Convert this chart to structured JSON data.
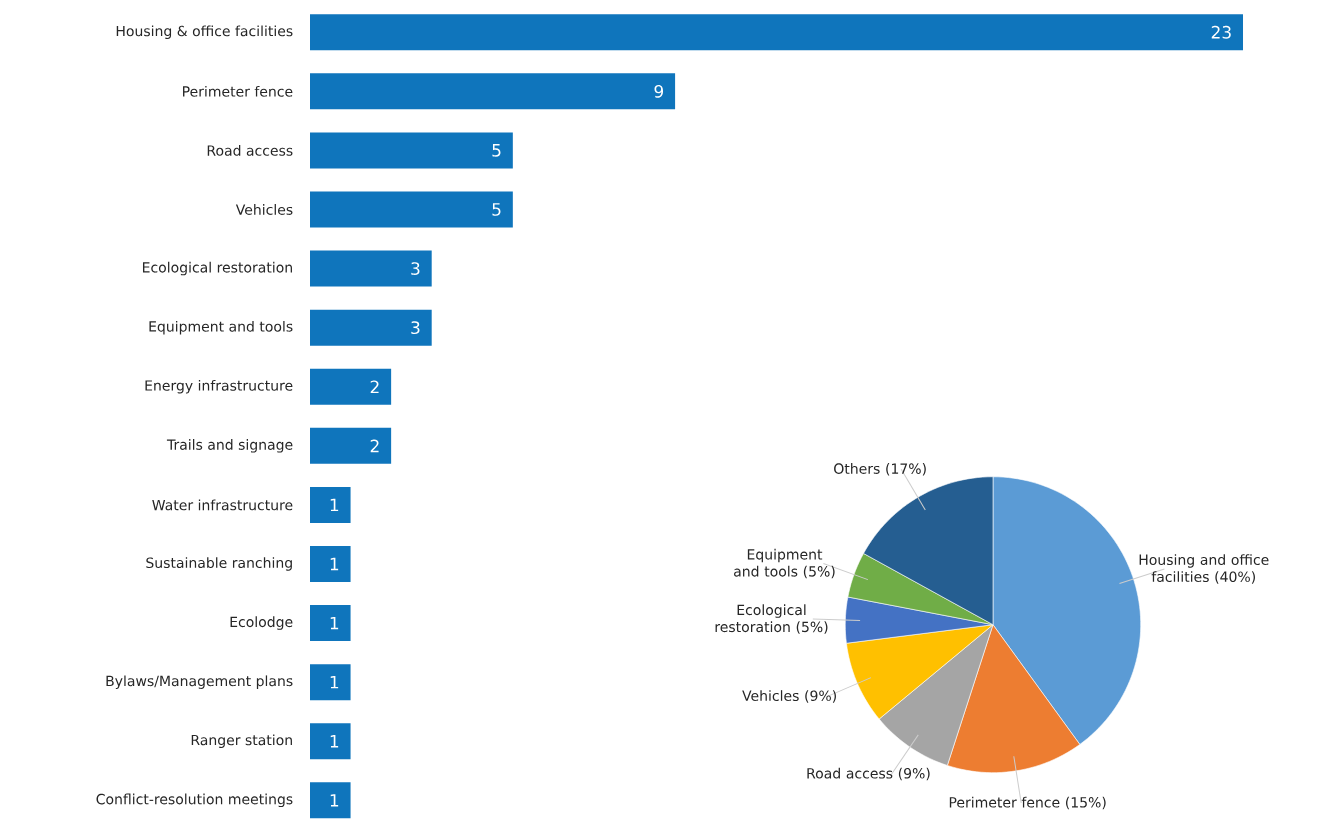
{
  "chart_data": [
    {
      "type": "bar",
      "orientation": "horizontal",
      "categories": [
        "Housing & office facilities",
        "Perimeter fence",
        "Road access",
        "Vehicles",
        "Ecological restoration",
        "Equipment and tools",
        "Energy infrastructure",
        "Trails and signage",
        "Water infrastructure",
        "Sustainable ranching",
        "Ecolodge",
        "Bylaws/Management plans",
        "Ranger station",
        "Conflict-resolution meetings"
      ],
      "values": [
        23,
        9,
        5,
        5,
        3,
        3,
        2,
        2,
        1,
        1,
        1,
        1,
        1,
        1
      ],
      "color": "#0f75bc",
      "data_labels": true
    },
    {
      "type": "pie",
      "categories": [
        "Housing and office facilities (40%)",
        "Perimeter fence (15%)",
        "Road access (9%)",
        "Vehicles (9%)",
        "Ecological restoration (5%)",
        "Equipment and tools (5%)",
        "Others (17%)"
      ],
      "values": [
        40,
        15,
        9,
        9,
        5,
        5,
        17
      ],
      "colors": [
        "#5b9bd5",
        "#ed7d31",
        "#a5a5a5",
        "#ffc000",
        "#4472c4",
        "#70ad47",
        "#255e91"
      ]
    }
  ]
}
